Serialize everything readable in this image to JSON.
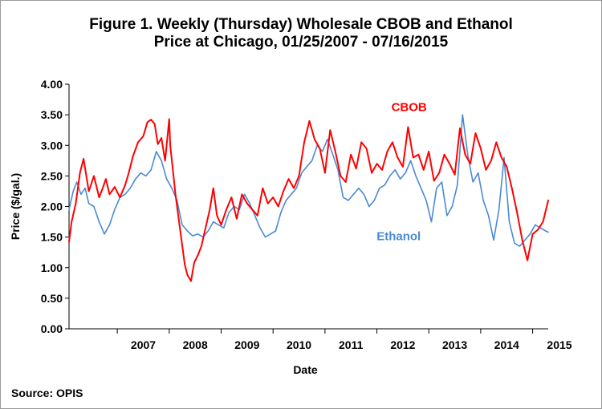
{
  "chart_data": {
    "type": "line",
    "title_line1": "Figure 1. Weekly (Thursday) Wholesale CBOB and Ethanol",
    "title_line2": "Price at Chicago, 01/25/2007  - 07/16/2015",
    "xlabel": "Date",
    "ylabel": "Price ($/gal.)",
    "source": "Source: OPIS",
    "ylim": [
      0,
      4
    ],
    "xlim": [
      2006.07,
      2015.3
    ],
    "yticks": [
      "0.00",
      "0.50",
      "1.00",
      "1.50",
      "2.00",
      "2.50",
      "3.00",
      "3.50",
      "4.00"
    ],
    "xticks": [
      "2007",
      "2008",
      "2009",
      "2010",
      "2011",
      "2012",
      "2013",
      "2014",
      "2015"
    ],
    "grid": false,
    "legend": "inline labels",
    "series": [
      {
        "name": "CBOB",
        "color": "#ff0000",
        "x": [
          2006.07,
          2006.12,
          2006.2,
          2006.28,
          2006.35,
          2006.45,
          2006.55,
          2006.65,
          2006.72,
          2006.78,
          2006.85,
          2006.95,
          2007.05,
          2007.15,
          2007.22,
          2007.3,
          2007.4,
          2007.5,
          2007.58,
          2007.65,
          2007.72,
          2007.78,
          2007.85,
          2007.92,
          2008.0,
          2008.02,
          2008.12,
          2008.22,
          2008.3,
          2008.35,
          2008.42,
          2008.48,
          2008.55,
          2008.62,
          2008.7,
          2008.78,
          2008.85,
          2008.92,
          2009.0,
          2009.1,
          2009.2,
          2009.3,
          2009.4,
          2009.5,
          2009.6,
          2009.7,
          2009.8,
          2009.9,
          2010.0,
          2010.1,
          2010.2,
          2010.3,
          2010.4,
          2010.5,
          2010.6,
          2010.7,
          2010.8,
          2010.9,
          2011.0,
          2011.1,
          2011.2,
          2011.3,
          2011.4,
          2011.5,
          2011.6,
          2011.7,
          2011.8,
          2011.9,
          2012.0,
          2012.1,
          2012.2,
          2012.3,
          2012.4,
          2012.5,
          2012.6,
          2012.7,
          2012.8,
          2012.9,
          2013.0,
          2013.1,
          2013.2,
          2013.3,
          2013.4,
          2013.5,
          2013.6,
          2013.7,
          2013.8,
          2013.9,
          2014.0,
          2014.1,
          2014.2,
          2014.3,
          2014.4,
          2014.5,
          2014.6,
          2014.7,
          2014.8,
          2014.9,
          2015.0,
          2015.1,
          2015.2,
          2015.3
        ],
        "y": [
          1.42,
          1.75,
          2.05,
          2.55,
          2.78,
          2.25,
          2.5,
          2.15,
          2.3,
          2.45,
          2.2,
          2.32,
          2.15,
          2.35,
          2.55,
          2.82,
          3.05,
          3.15,
          3.38,
          3.42,
          3.35,
          3.02,
          3.12,
          2.75,
          3.43,
          3.0,
          2.2,
          1.55,
          1.05,
          0.88,
          0.78,
          1.08,
          1.2,
          1.35,
          1.65,
          1.95,
          2.3,
          1.85,
          1.7,
          1.95,
          2.15,
          1.8,
          2.2,
          2.05,
          1.95,
          1.85,
          2.3,
          2.05,
          2.15,
          2.0,
          2.25,
          2.45,
          2.3,
          2.5,
          3.05,
          3.4,
          3.1,
          2.95,
          2.55,
          3.25,
          2.9,
          2.5,
          2.4,
          2.85,
          2.62,
          3.05,
          2.95,
          2.55,
          2.7,
          2.6,
          2.9,
          3.05,
          2.8,
          2.65,
          3.3,
          2.8,
          2.85,
          2.6,
          2.9,
          2.42,
          2.55,
          2.85,
          2.7,
          2.52,
          3.28,
          2.85,
          2.7,
          3.2,
          2.95,
          2.6,
          2.75,
          3.05,
          2.8,
          2.65,
          2.3,
          1.9,
          1.45,
          1.12,
          1.55,
          1.62,
          1.75,
          2.1
        ]
      },
      {
        "name": "Ethanol",
        "color": "#4a8ad4",
        "x": [
          2006.07,
          2006.15,
          2006.22,
          2006.3,
          2006.38,
          2006.45,
          2006.55,
          2006.65,
          2006.75,
          2006.85,
          2006.95,
          2007.05,
          2007.15,
          2007.25,
          2007.35,
          2007.45,
          2007.55,
          2007.65,
          2007.75,
          2007.85,
          2007.95,
          2008.05,
          2008.15,
          2008.25,
          2008.35,
          2008.45,
          2008.55,
          2008.65,
          2008.75,
          2008.85,
          2008.95,
          2009.05,
          2009.15,
          2009.25,
          2009.35,
          2009.45,
          2009.55,
          2009.65,
          2009.75,
          2009.85,
          2009.95,
          2010.05,
          2010.15,
          2010.25,
          2010.35,
          2010.45,
          2010.55,
          2010.65,
          2010.75,
          2010.85,
          2010.95,
          2011.05,
          2011.15,
          2011.25,
          2011.35,
          2011.45,
          2011.55,
          2011.65,
          2011.75,
          2011.85,
          2011.95,
          2012.05,
          2012.15,
          2012.25,
          2012.35,
          2012.45,
          2012.55,
          2012.65,
          2012.75,
          2012.85,
          2012.95,
          2013.05,
          2013.15,
          2013.25,
          2013.35,
          2013.45,
          2013.55,
          2013.65,
          2013.75,
          2013.85,
          2013.95,
          2014.05,
          2014.15,
          2014.25,
          2014.35,
          2014.45,
          2014.55,
          2014.65,
          2014.75,
          2014.85,
          2014.95,
          2015.05,
          2015.15,
          2015.25,
          2015.3
        ],
        "y": [
          1.95,
          2.25,
          2.4,
          2.2,
          2.3,
          2.05,
          2.0,
          1.75,
          1.55,
          1.7,
          1.95,
          2.15,
          2.2,
          2.3,
          2.45,
          2.55,
          2.5,
          2.6,
          2.9,
          2.75,
          2.45,
          2.3,
          2.1,
          1.7,
          1.6,
          1.52,
          1.55,
          1.5,
          1.6,
          1.75,
          1.7,
          1.65,
          1.9,
          2.0,
          1.95,
          2.2,
          2.05,
          1.85,
          1.65,
          1.5,
          1.55,
          1.6,
          1.9,
          2.1,
          2.2,
          2.3,
          2.55,
          2.65,
          2.75,
          3.0,
          2.9,
          3.1,
          2.85,
          2.6,
          2.15,
          2.1,
          2.2,
          2.3,
          2.2,
          2.0,
          2.1,
          2.3,
          2.35,
          2.5,
          2.6,
          2.45,
          2.55,
          2.75,
          2.5,
          2.3,
          2.1,
          1.75,
          2.3,
          2.4,
          1.85,
          2.0,
          2.35,
          3.5,
          2.85,
          2.4,
          2.55,
          2.1,
          1.85,
          1.45,
          1.95,
          2.8,
          1.75,
          1.4,
          1.35,
          1.45,
          1.55,
          1.7,
          1.65,
          1.6,
          1.58
        ]
      }
    ],
    "series_labels": {
      "cbob": "CBOB",
      "ethanol": "Ethanol"
    }
  }
}
